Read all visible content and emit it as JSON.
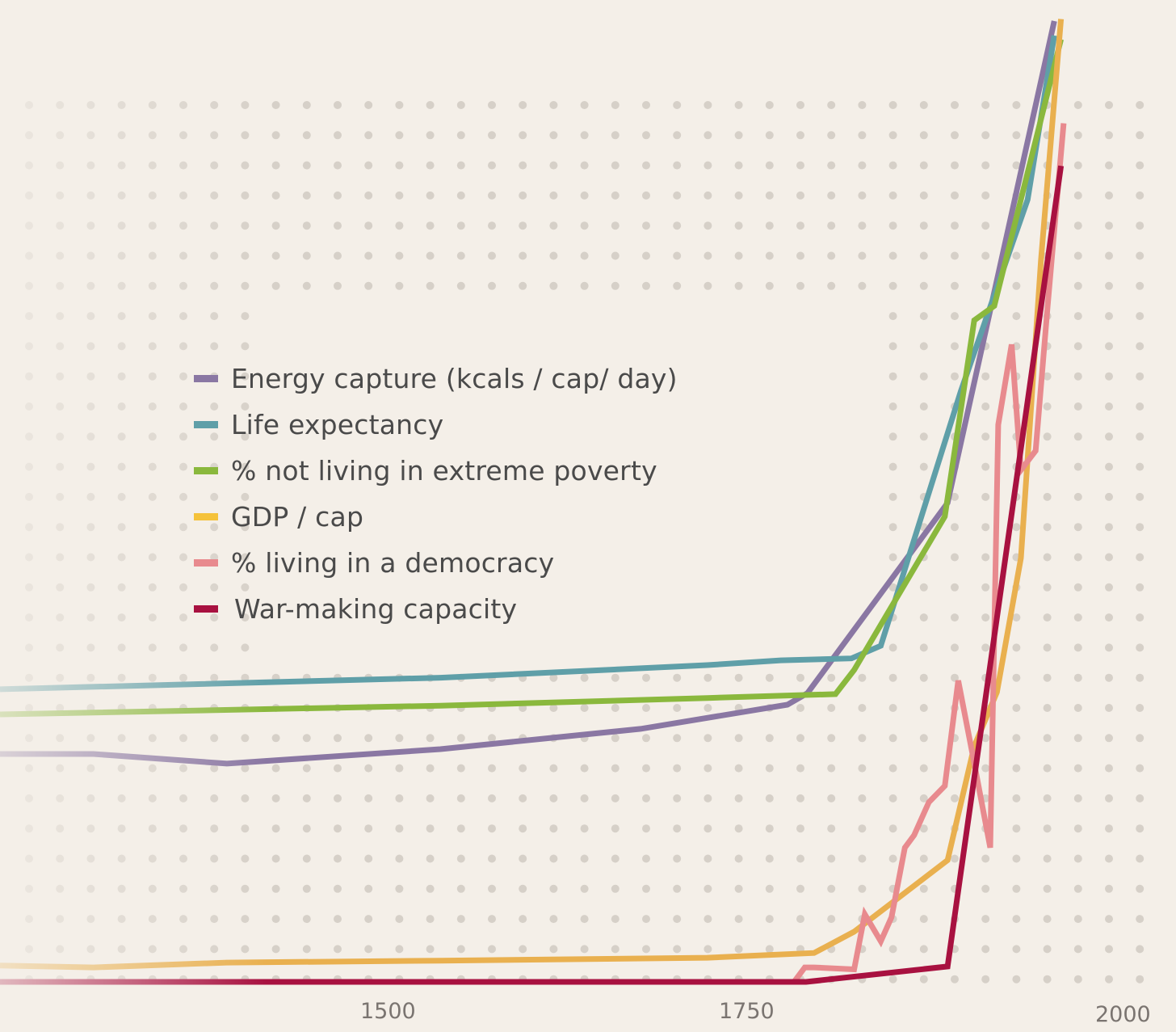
{
  "chart_data": {
    "type": "line",
    "title": "",
    "xlabel": "",
    "ylabel": "",
    "xlim": [
      1170,
      2030
    ],
    "ylim": [
      0,
      100
    ],
    "grid": "dotted",
    "legend_position": "center-left",
    "x_ticks": [
      "1500",
      "1750",
      "2000"
    ],
    "series": [
      {
        "name": "Energy capture (kcals / cap/ day)",
        "color": "#8a77a3",
        "x": [
          1170,
          1240,
          1340,
          1500,
          1650,
          1760,
          1775,
          1880,
          1960
        ],
        "y": [
          23.6,
          23.6,
          22.6,
          24.1,
          26.2,
          28.7,
          29.9,
          49.6,
          99.5
        ]
      },
      {
        "name": "Life expectancy",
        "color": "#5f9fa8",
        "x": [
          1170,
          1500,
          1700,
          1755,
          1808,
          1830,
          1890,
          1940,
          1960
        ],
        "y": [
          30.3,
          31.5,
          32.8,
          33.3,
          33.5,
          34.8,
          61.2,
          81.0,
          98.0
        ]
      },
      {
        "name": "% not living in extreme poverty",
        "color": "#8ab83d",
        "x": [
          1170,
          1500,
          1700,
          1796,
          1810,
          1878,
          1900,
          1915,
          1965
        ],
        "y": [
          27.7,
          28.6,
          29.4,
          29.8,
          32.3,
          48.2,
          68.5,
          70.0,
          97.6
        ]
      },
      {
        "name": "GDP / cap",
        "color": "#e9b04f",
        "x": [
          1170,
          1240,
          1340,
          1500,
          1700,
          1780,
          1810,
          1880,
          1900,
          1917,
          1935,
          1950,
          1965
        ],
        "y": [
          1.7,
          1.5,
          2.0,
          2.2,
          2.5,
          3.0,
          5.2,
          12.6,
          24.4,
          30.0,
          43.9,
          74.7,
          99.7
        ]
      },
      {
        "name": "% living in a democracy",
        "color": "#e88a8e",
        "x": [
          1170,
          1500,
          1750,
          1765,
          1773,
          1780,
          1810,
          1818,
          1830,
          1838,
          1848,
          1855,
          1866,
          1878,
          1888,
          1899,
          1912,
          1918,
          1928,
          1935,
          1946,
          1955,
          1967
        ],
        "y": [
          0.0,
          0.0,
          0.0,
          0.0,
          1.5,
          1.5,
          1.3,
          7.0,
          4.2,
          6.7,
          13.9,
          15.2,
          18.6,
          20.3,
          31.2,
          23.4,
          13.9,
          57.7,
          66.0,
          53.0,
          55.0,
          70.0,
          88.9
        ]
      },
      {
        "name": "War-making capacity",
        "color": "#a81140",
        "x": [
          1170,
          1500,
          1774,
          1880,
          1890,
          1965
        ],
        "y": [
          0.0,
          0.0,
          0.0,
          1.6,
          11.4,
          84.5
        ]
      }
    ]
  }
}
